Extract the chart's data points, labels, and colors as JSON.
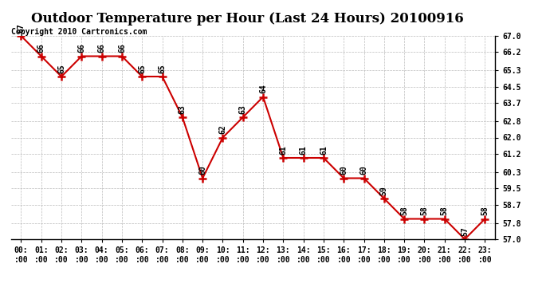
{
  "title": "Outdoor Temperature per Hour (Last 24 Hours) 20100916",
  "copyright": "Copyright 2010 Cartronics.com",
  "hours": [
    "00:00",
    "01:00",
    "02:00",
    "03:00",
    "04:00",
    "05:00",
    "06:00",
    "07:00",
    "08:00",
    "09:00",
    "10:00",
    "11:00",
    "12:00",
    "13:00",
    "14:00",
    "15:00",
    "16:00",
    "17:00",
    "18:00",
    "19:00",
    "20:00",
    "21:00",
    "22:00",
    "23:00"
  ],
  "temps": [
    67,
    66,
    65,
    66,
    66,
    66,
    65,
    65,
    63,
    60,
    62,
    63,
    64,
    61,
    61,
    61,
    60,
    60,
    59,
    58,
    58,
    58,
    57,
    58
  ],
  "ylim_min": 57.0,
  "ylim_max": 67.0,
  "yticks": [
    57.0,
    57.8,
    58.7,
    59.5,
    60.3,
    61.2,
    62.0,
    62.8,
    63.7,
    64.5,
    65.3,
    66.2,
    67.0
  ],
  "line_color": "#cc0000",
  "marker_color": "#cc0000",
  "bg_color": "#ffffff",
  "grid_color": "#bbbbbb",
  "title_fontsize": 12,
  "label_fontsize": 7,
  "tick_fontsize": 7,
  "copyright_fontsize": 7
}
